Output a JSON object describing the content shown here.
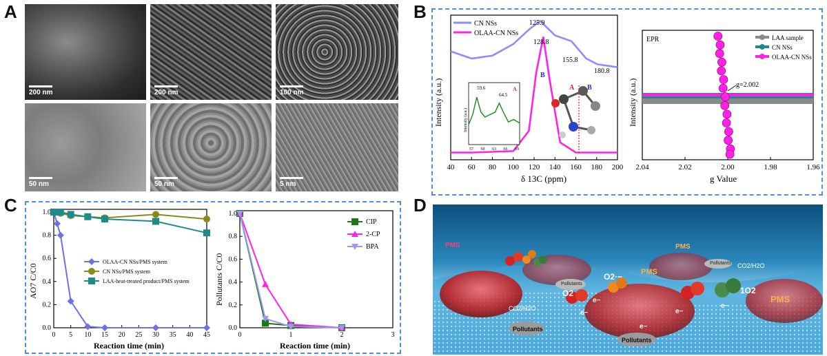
{
  "panels": {
    "a": {
      "letter": "A",
      "scalebars": [
        "200 nm",
        "200 nm",
        "100 nm",
        "50 nm",
        "50 nm",
        "5 nm"
      ]
    },
    "b": {
      "letter": "B"
    },
    "c": {
      "letter": "C"
    },
    "d": {
      "letter": "D"
    }
  },
  "nmr": {
    "legend": [
      "CN NSs",
      "OLAA-CN NSs"
    ],
    "peak_labels": [
      "125.9",
      "128.8",
      "155.8",
      "180.8"
    ],
    "ylabel": "Intensity (a.u.)",
    "xlabel": "δ 13C (ppm)",
    "xticks": [
      "40",
      "60",
      "80",
      "100",
      "120",
      "140",
      "160",
      "180",
      "200"
    ],
    "inset_peaks": [
      "59.6",
      "64.5"
    ],
    "inset_ylabel": "Intensity (a.u.)",
    "inset_xticks": [
      "57",
      "60",
      "63",
      "66",
      "69"
    ],
    "markers": {
      "a": "A",
      "b": "B"
    },
    "colors": {
      "cn": "#8c8cff",
      "olaa": "#ff22e6",
      "inset": "#1a8a1a",
      "marker_a": "#e02020",
      "marker_b": "#2a2ad0"
    }
  },
  "epr": {
    "title": "EPR",
    "legend": [
      "LAA sample",
      "CN NSs",
      "OLAA-CN NSs"
    ],
    "g_label": "g=2.002",
    "ylabel": "Intensity (a.u.)",
    "xlabel": "g Value",
    "xticks": [
      "2.04",
      "2.02",
      "2.00",
      "1.98",
      "1.96"
    ],
    "colors": {
      "laa": "#8a8a8a",
      "cn": "#1e8a8a",
      "olaa": "#ff22e6"
    }
  },
  "ao7": {
    "ylabel": "AO7 C/C0",
    "xlabel": "Reaction time (min)",
    "xticks": [
      "0",
      "5",
      "10",
      "15",
      "20",
      "25",
      "30",
      "35",
      "40",
      "45"
    ],
    "yticks": [
      "0.0",
      "0.2",
      "0.4",
      "0.6",
      "0.8",
      "1.0"
    ],
    "legend": [
      "OLAA-CN NSs/PMS system",
      "CN NSs/PMS system",
      "LAA-heat-treated product/PMS system"
    ],
    "colors": [
      "#6f6fe6",
      "#8a8a1a",
      "#1e8a8a"
    ]
  },
  "pollutants": {
    "ylabel": "Pollutants C/C0",
    "xlabel": "Reaction time (min)",
    "xticks": [
      "0",
      "1",
      "2",
      "3"
    ],
    "yticks": [
      "0.0",
      "0.2",
      "0.4",
      "0.6",
      "0.8",
      "1.0"
    ],
    "legend": [
      "CIP",
      "2-CP",
      "BPA"
    ],
    "colors": [
      "#1a7a1a",
      "#ff22e6",
      "#9a9aea"
    ]
  },
  "scheme": {
    "pms": [
      "PMS",
      "PMS",
      "PMS",
      "PMS"
    ],
    "pollutants": [
      "Pollutants",
      "Pollutants",
      "Pollutants",
      "Pollutants"
    ],
    "co2": [
      "CO2/H2O",
      "CO2/H2O"
    ],
    "o2_super": "O2·−",
    "o2": "O2",
    "singlet": "1O2",
    "electron": [
      "e−",
      "e−",
      "e−",
      "e−",
      "e−"
    ]
  },
  "chart_data": [
    {
      "type": "line",
      "title": "",
      "xlabel": "δ 13C (ppm)",
      "ylabel": "Intensity (a.u.)",
      "xlim": [
        40,
        200
      ],
      "series": [
        {
          "name": "CN NSs",
          "x": [
            40,
            60,
            80,
            100,
            115,
            125.9,
            140,
            155.8,
            170,
            180.8,
            200
          ],
          "values": [
            0.75,
            0.7,
            0.72,
            0.8,
            0.9,
            0.96,
            0.86,
            0.82,
            0.7,
            0.66,
            0.64
          ]
        },
        {
          "name": "OLAA-CN NSs",
          "x": [
            40,
            60,
            100,
            115,
            122,
            128.8,
            135,
            145,
            160,
            200
          ],
          "values": [
            0.05,
            0.05,
            0.06,
            0.2,
            0.6,
            0.85,
            0.55,
            0.12,
            0.05,
            0.05
          ]
        }
      ]
    },
    {
      "type": "line",
      "title": "EPR",
      "xlabel": "g Value",
      "ylabel": "Intensity (a.u.)",
      "xlim": [
        2.04,
        1.96
      ],
      "series": [
        {
          "name": "LAA sample",
          "x": [
            2.04,
            2.0,
            1.96
          ],
          "values": [
            0,
            0,
            0
          ]
        },
        {
          "name": "CN NSs",
          "x": [
            2.04,
            2.0,
            1.96
          ],
          "values": [
            0.02,
            0.02,
            0.02
          ]
        },
        {
          "name": "OLAA-CN NSs",
          "x": [
            2.04,
            2.01,
            2.004,
            2.0,
            1.996,
            1.99,
            1.96
          ],
          "values": [
            0.03,
            0.1,
            0.95,
            0.0,
            -0.9,
            -0.1,
            0.03
          ]
        }
      ]
    },
    {
      "type": "line",
      "title": "",
      "xlabel": "Reaction time (min)",
      "ylabel": "AO7 C/C0",
      "xlim": [
        0,
        45
      ],
      "ylim": [
        0,
        1.0
      ],
      "series": [
        {
          "name": "OLAA-CN NSs/PMS system",
          "x": [
            0,
            1,
            2,
            5,
            10,
            15,
            30,
            45
          ],
          "values": [
            1.0,
            0.9,
            0.8,
            0.23,
            0.01,
            0.0,
            0.0,
            0.0
          ]
        },
        {
          "name": "CN NSs/PMS system",
          "x": [
            0,
            1,
            2,
            5,
            10,
            15,
            30,
            45
          ],
          "values": [
            1.0,
            1.0,
            0.99,
            0.97,
            0.96,
            0.95,
            0.98,
            0.94
          ]
        },
        {
          "name": "LAA-heat-treated product/PMS system",
          "x": [
            0,
            1,
            2,
            5,
            10,
            15,
            30,
            45
          ],
          "values": [
            1.0,
            1.0,
            1.0,
            0.98,
            0.96,
            0.94,
            0.92,
            0.82
          ]
        }
      ]
    },
    {
      "type": "line",
      "title": "",
      "xlabel": "Reaction time (min)",
      "ylabel": "Pollutants C/C0",
      "xlim": [
        0,
        3
      ],
      "ylim": [
        0,
        1.0
      ],
      "series": [
        {
          "name": "CIP",
          "x": [
            0,
            0.5,
            1,
            2
          ],
          "values": [
            1.0,
            0.04,
            0.02,
            0.0
          ]
        },
        {
          "name": "2-CP",
          "x": [
            0,
            0.5,
            1,
            2
          ],
          "values": [
            1.0,
            0.38,
            0.03,
            0.0
          ]
        },
        {
          "name": "BPA",
          "x": [
            0,
            0.5,
            1,
            2
          ],
          "values": [
            1.0,
            0.08,
            0.01,
            0.0
          ]
        }
      ]
    }
  ]
}
